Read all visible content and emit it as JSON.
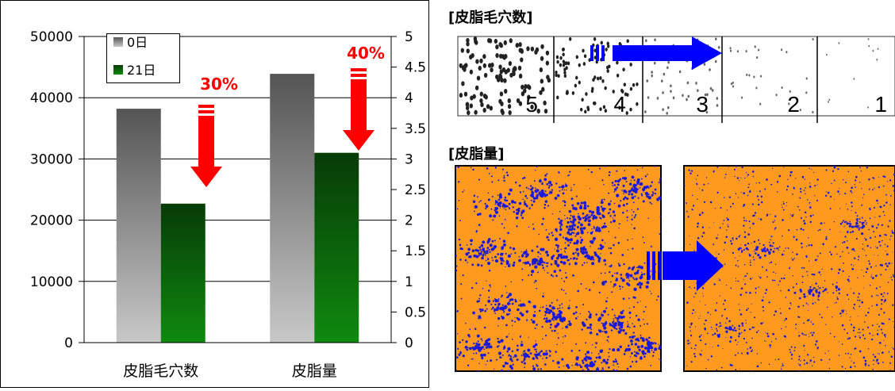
{
  "chart_data": {
    "type": "bar",
    "categories": [
      "皮脂毛穴数",
      "皮脂量"
    ],
    "series": [
      {
        "name": "0日",
        "values": [
          38200,
          43900
        ]
      },
      {
        "name": "21日",
        "values": [
          22700,
          31000
        ]
      }
    ],
    "ylim": [
      0,
      50000
    ],
    "y_ticks": [
      "50000",
      "40000",
      "30000",
      "20000",
      "10000",
      "0"
    ],
    "y2lim": [
      0,
      5
    ],
    "y2_ticks": [
      "5",
      "4.5",
      "4",
      "3.5",
      "3",
      "2.5",
      "2",
      "1.5",
      "1",
      "0.5",
      "0"
    ],
    "annotations": [
      "30%",
      "40%"
    ],
    "grid": true,
    "legend_position": "top-left",
    "colors": {
      "series0_top": "#555555",
      "series0_bottom": "#c8c8c8",
      "series1_top": "#073b07",
      "series1_bottom": "#0f8a0f",
      "arrow": "#ff0000",
      "grid": "#000000"
    }
  },
  "pore_panel": {
    "title": "[皮脂毛穴数]",
    "scale_labels": [
      "5",
      "4",
      "3",
      "2",
      "1"
    ],
    "arrow_color": "#0000ff"
  },
  "sebum_panel": {
    "title": "[皮脂量]",
    "map_color": "#ff9a1e",
    "spot_color": "#1a1ad8",
    "arrow_color": "#0000ff"
  }
}
